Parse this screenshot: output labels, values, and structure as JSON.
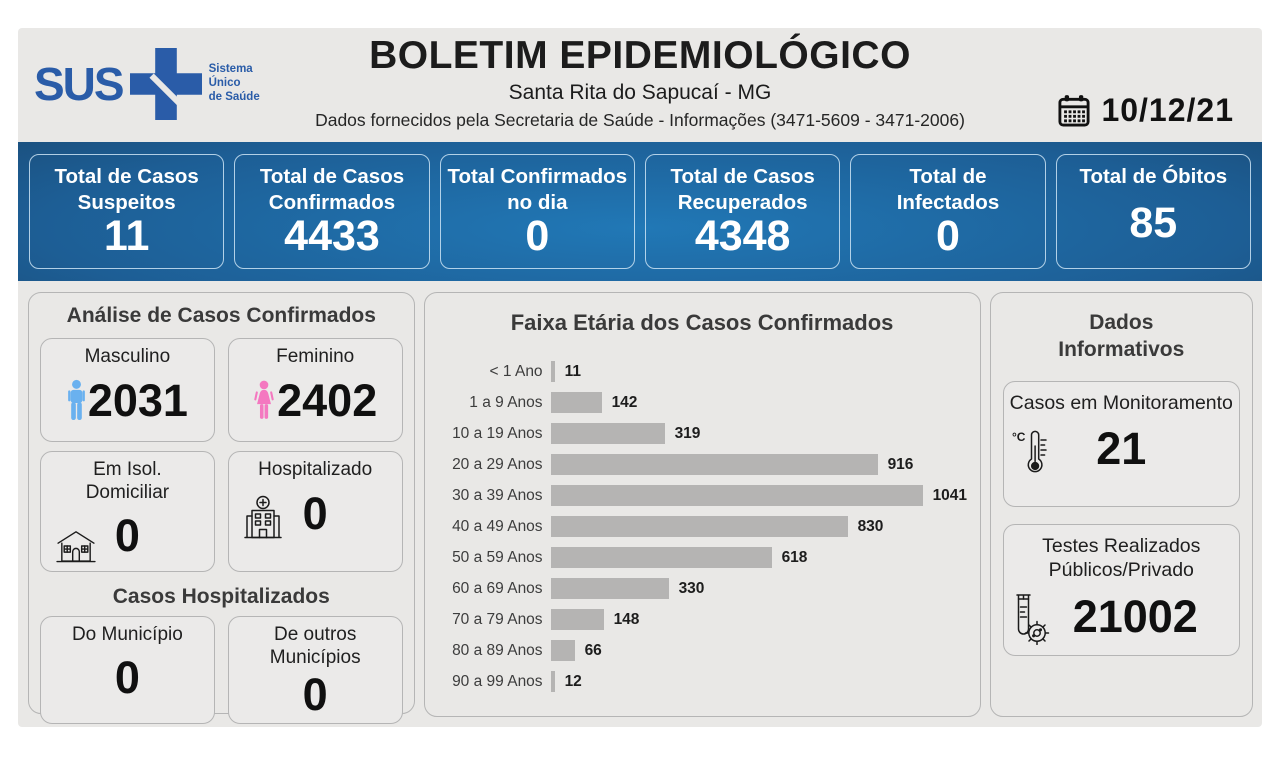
{
  "header": {
    "logo_text": "SUS",
    "logo_tagline": "Sistema\nÚnico\nde Saúde",
    "title": "BOLETIM EPIDEMIOLÓGICO",
    "subtitle": "Santa Rita do Sapucaí - MG",
    "info_line": "Dados fornecidos pela Secretaria de Saúde - Informações (3471-5609 - 3471-2006)",
    "date": "10/12/21"
  },
  "summary_cards": [
    {
      "label": "Total de Casos\nSuspeitos",
      "value": "11"
    },
    {
      "label": "Total de Casos\nConfirmados",
      "value": "4433"
    },
    {
      "label": "Total Confirmados\nno dia",
      "value": "0"
    },
    {
      "label": "Total de Casos\nRecuperados",
      "value": "4348"
    },
    {
      "label": "Total de\nInfectados",
      "value": "0"
    },
    {
      "label": "Total de Óbitos",
      "value": "85"
    }
  ],
  "analysis_panel": {
    "title": "Análise de Casos Confirmados",
    "male": {
      "label": "Masculino",
      "value": "2031",
      "icon": "male-icon"
    },
    "female": {
      "label": "Feminino",
      "value": "2402",
      "icon": "female-icon"
    },
    "isolation": {
      "label": "Em Isol.\nDomiciliar",
      "value": "0",
      "icon": "house-icon"
    },
    "hospitalized": {
      "label": "Hospitalizado",
      "value": "0",
      "icon": "hospital-icon"
    },
    "sub_title": "Casos Hospitalizados",
    "from_city": {
      "label": "Do Município",
      "value": "0"
    },
    "other_cities": {
      "label": "De outros\nMunicípios",
      "value": "0"
    }
  },
  "chart_data": {
    "type": "bar",
    "orientation": "horizontal",
    "title": "Faixa Etária dos Casos Confirmados",
    "categories": [
      "< 1 Ano",
      "1 a 9 Anos",
      "10 a 19 Anos",
      "20 a 29 Anos",
      "30 a 39 Anos",
      "40 a 49 Anos",
      "50 a 59 Anos",
      "60 a 69 Anos",
      "70 a 79 Anos",
      "80 a 89 Anos",
      "90 a 99 Anos"
    ],
    "values": [
      11,
      142,
      319,
      916,
      1041,
      830,
      618,
      330,
      148,
      66,
      12
    ],
    "data_labels": true,
    "grid": false,
    "xlim": [
      0,
      1100
    ],
    "bar_color": "#b5b4b3"
  },
  "info_panel": {
    "title": "Dados\nInformativos",
    "monitoring": {
      "label": "Casos em Monitoramento",
      "value": "21",
      "icon": "thermometer-icon"
    },
    "tests": {
      "label": "Testes Realizados Públicos/Privado",
      "value": "21002",
      "icon": "test-tube-icon"
    }
  },
  "colors": {
    "logo_blue": "#2a5ca8",
    "navy_dark": "#152c44",
    "navy_mid": "#1d5e95",
    "navy_bright": "#2178b6",
    "page_gray": "#e9e8e6",
    "panel_border": "#b5b5b5",
    "bar_gray": "#b5b4b3",
    "male_blue": "#6ab1ef",
    "female_pink": "#f478c0"
  }
}
